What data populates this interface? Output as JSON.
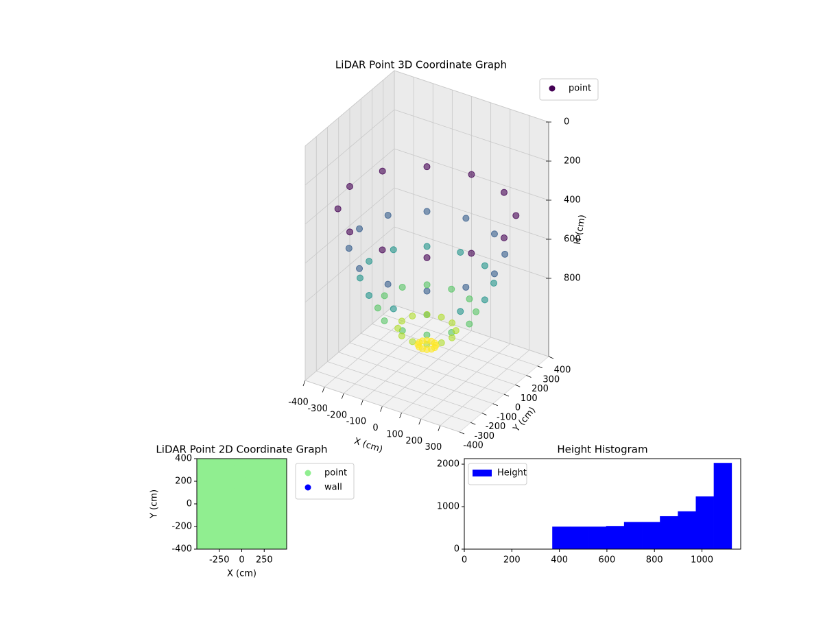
{
  "chart_data": [
    {
      "type": "scatter3d",
      "title": "LiDAR Point 3D Coordinate Graph",
      "x_label": "X (cm)",
      "y_label": "Y (cm)",
      "z_label": "H (cm)",
      "xlim": [
        -400,
        400
      ],
      "ylim": [
        -400,
        400
      ],
      "zlim": [
        0,
        1200
      ],
      "z_inverted": true,
      "xticks": [
        -400,
        -300,
        -200,
        -100,
        0,
        100,
        200,
        300
      ],
      "yticks": [
        -400,
        -300,
        -200,
        -100,
        0,
        100,
        200,
        300,
        400
      ],
      "zticks": [
        0,
        200,
        400,
        600,
        800
      ],
      "grid": true,
      "legend": "upper right",
      "colormap": "viridis",
      "series": [
        {
          "name": "point",
          "color": "#440154",
          "x": [
            400,
            346,
            200,
            0,
            -200,
            -346,
            -400,
            -346,
            -200,
            0,
            200,
            346,
            350,
            303,
            175,
            0,
            -175,
            -303,
            -350,
            -303,
            -175,
            0,
            175,
            303,
            300,
            260,
            150,
            0,
            -150,
            -260,
            -300,
            -260,
            -150,
            0,
            150,
            260,
            220,
            191,
            110,
            0,
            -110,
            -191,
            -220,
            -191,
            -110,
            0,
            110,
            191,
            130,
            113,
            65,
            0,
            -65,
            -113,
            -130,
            -113,
            -65,
            0,
            65,
            113,
            40,
            35,
            20,
            0,
            -20,
            -35,
            -40,
            -35,
            -20,
            0,
            20,
            35
          ],
          "y": [
            0,
            200,
            346,
            400,
            346,
            200,
            0,
            -200,
            -346,
            -400,
            -346,
            -200,
            0,
            175,
            303,
            350,
            303,
            175,
            0,
            -175,
            -303,
            -350,
            -303,
            -175,
            0,
            150,
            260,
            300,
            260,
            150,
            0,
            -150,
            -260,
            -300,
            -260,
            -150,
            0,
            110,
            191,
            220,
            191,
            110,
            0,
            -110,
            -191,
            -220,
            -191,
            -110,
            0,
            65,
            113,
            130,
            113,
            65,
            0,
            -65,
            -113,
            -130,
            -113,
            -65,
            0,
            20,
            35,
            40,
            35,
            20,
            0,
            -20,
            -35,
            -40,
            -35,
            -20
          ],
          "z": [
            400,
            400,
            400,
            400,
            400,
            400,
            400,
            400,
            400,
            400,
            400,
            400,
            600,
            600,
            600,
            600,
            600,
            600,
            600,
            600,
            600,
            600,
            600,
            600,
            750,
            750,
            750,
            750,
            750,
            750,
            750,
            750,
            750,
            750,
            750,
            750,
            900,
            900,
            900,
            900,
            900,
            900,
            900,
            900,
            900,
            900,
            900,
            900,
            1000,
            1000,
            1000,
            1000,
            1000,
            1000,
            1000,
            1000,
            1000,
            1000,
            1000,
            1000,
            1080,
            1080,
            1080,
            1080,
            1080,
            1080,
            1080,
            1080,
            1080,
            1080,
            1080,
            1080
          ]
        }
      ]
    },
    {
      "type": "scatter",
      "title": "LiDAR Point 2D Coordinate Graph",
      "x_label": "X (cm)",
      "y_label": "Y (cm)",
      "xlim": [
        -500,
        500
      ],
      "ylim": [
        -400,
        400
      ],
      "xticks": [
        -250,
        0,
        250
      ],
      "yticks": [
        -400,
        -200,
        0,
        200,
        400
      ],
      "legend": "outside upper right",
      "series": [
        {
          "name": "point",
          "color": "#90ee90",
          "x": [
            -500,
            -375,
            -250,
            -125,
            0,
            125,
            250,
            375,
            500,
            -500,
            -375,
            -250,
            -125,
            0,
            125,
            250,
            375,
            500,
            -500,
            -375,
            -250,
            -125,
            0,
            125,
            250,
            375,
            500,
            -500,
            -375,
            -250,
            -125,
            0,
            125,
            250,
            375,
            500,
            -500,
            -375,
            -250,
            -125,
            0,
            125,
            250,
            375,
            500,
            -500,
            -375,
            -250,
            -125,
            0,
            125,
            250,
            375,
            500,
            -500,
            -375,
            -250,
            -125,
            0,
            125,
            250,
            375,
            500,
            -500,
            -375,
            -250,
            -125,
            0,
            125,
            250,
            375,
            500,
            -500,
            -375,
            -250,
            -125,
            0,
            125,
            250,
            375,
            500
          ],
          "y": [
            -400,
            -400,
            -400,
            -400,
            -400,
            -400,
            -400,
            -400,
            -400,
            -300,
            -300,
            -300,
            -300,
            -300,
            -300,
            -300,
            -300,
            -300,
            -200,
            -200,
            -200,
            -200,
            -200,
            -200,
            -200,
            -200,
            -200,
            -100,
            -100,
            -100,
            -100,
            -100,
            -100,
            -100,
            -100,
            -100,
            0,
            0,
            0,
            0,
            0,
            0,
            0,
            0,
            0,
            100,
            100,
            100,
            100,
            100,
            100,
            100,
            100,
            100,
            200,
            200,
            200,
            200,
            200,
            200,
            200,
            200,
            200,
            300,
            300,
            300,
            300,
            300,
            300,
            300,
            300,
            300,
            400,
            400,
            400,
            400,
            400,
            400,
            400,
            400,
            400
          ]
        },
        {
          "name": "wall",
          "color": "#0000ff",
          "x": [],
          "y": []
        }
      ]
    },
    {
      "type": "histogram",
      "title": "Height Histogram",
      "xlim": [
        0,
        1163
      ],
      "ylim": [
        0,
        2130
      ],
      "xticks": [
        0,
        200,
        400,
        600,
        800,
        1000
      ],
      "yticks": [
        0,
        1000,
        2000
      ],
      "legend": "upper left",
      "bins": [
        370,
        445.5,
        521,
        596.5,
        672,
        747.5,
        823,
        898.5,
        974,
        1049.5,
        1125
      ],
      "series": [
        {
          "name": "Height",
          "color": "#0000ff",
          "values": [
            530,
            530,
            530,
            545,
            640,
            640,
            775,
            890,
            1240,
            2030
          ]
        }
      ]
    }
  ]
}
